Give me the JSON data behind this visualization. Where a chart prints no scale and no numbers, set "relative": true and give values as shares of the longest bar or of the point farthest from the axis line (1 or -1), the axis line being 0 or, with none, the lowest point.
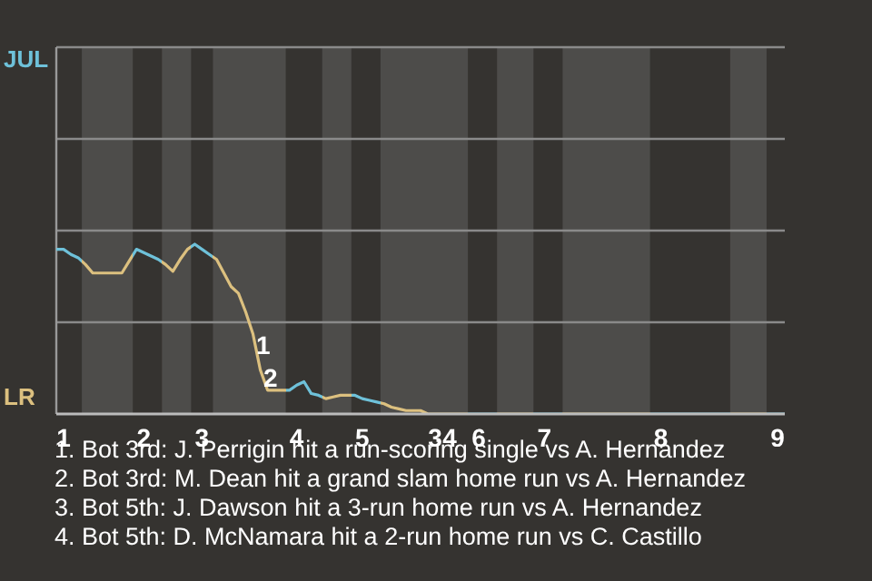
{
  "chart_data": {
    "type": "line",
    "relative": true,
    "categories": [
      null,
      "1",
      null,
      null,
      null,
      null,
      null,
      null,
      null,
      null,
      null,
      null,
      "2",
      null,
      null,
      null,
      null,
      null,
      null,
      null,
      "3",
      null,
      null,
      null,
      null,
      null,
      null,
      null,
      null,
      null,
      null,
      null,
      null,
      "4",
      null,
      null,
      null,
      null,
      null,
      null,
      null,
      null,
      "5",
      null,
      null,
      null,
      null,
      null,
      null,
      null,
      null,
      null,
      "3",
      null,
      "4",
      null,
      null,
      null,
      "6",
      null,
      null,
      null,
      null,
      null,
      null,
      null,
      null,
      "7",
      null,
      null,
      null,
      null,
      null,
      null,
      null,
      null,
      null,
      null,
      null,
      null,
      null,
      null,
      null,
      "8",
      null,
      null,
      null,
      null,
      null,
      null,
      null,
      null,
      null,
      null,
      null,
      null,
      null,
      null,
      null,
      "9",
      null
    ],
    "ref_lines": [
      {
        "axis": "y",
        "value": 0.54,
        "color": "#8a8a8a"
      },
      {
        "axis": "y",
        "value": 1.08,
        "color": "#8a8a8a"
      },
      {
        "axis": "y",
        "value": 1.62,
        "color": "#8a8a8a"
      },
      {
        "axis": "y",
        "value": 2.16,
        "color": "#8a8a8a"
      }
    ],
    "values": [
      0.97,
      0.97,
      0.94,
      0.92,
      0.88,
      0.83,
      0.83,
      0.83,
      0.83,
      0.83,
      0.9,
      0.97,
      0.95,
      0.93,
      0.91,
      0.88,
      0.84,
      0.91,
      0.97,
      1,
      0.97,
      0.94,
      0.91,
      0.83,
      0.75,
      0.71,
      0.6,
      0.47,
      0.26,
      0.14,
      0.14,
      0.14,
      0.14,
      0.17,
      0.19,
      0.12,
      0.11,
      0.09,
      0.1,
      0.11,
      0.11,
      0.11,
      0.09,
      0.08,
      0.07,
      0.06,
      0.04,
      0.03,
      0.02,
      0.02,
      0.02,
      0,
      0,
      0,
      0,
      0,
      0,
      0,
      0,
      0,
      0,
      0,
      0,
      0,
      0,
      0,
      0,
      0,
      0,
      0,
      0,
      0,
      0,
      0,
      0,
      0,
      0,
      0,
      0,
      0,
      0,
      0,
      0,
      0,
      0,
      0,
      0,
      0,
      0,
      0,
      0,
      0,
      0,
      0,
      0,
      0,
      0,
      0,
      0,
      0,
      0
    ],
    "colors": [
      "#6ec1d9",
      "#6ec1d9",
      "#6ec1d9",
      "#6ec1d9",
      "#dcc07f",
      "#dcc07f",
      "#dcc07f",
      "#dcc07f",
      "#dcc07f",
      "#dcc07f",
      "#dcc07f",
      "#6ec1d9",
      "#6ec1d9",
      "#6ec1d9",
      "#6ec1d9",
      "#dcc07f",
      "#dcc07f",
      "#dcc07f",
      "#dcc07f",
      "#6ec1d9",
      "#6ec1d9",
      "#6ec1d9",
      "#dcc07f",
      "#dcc07f",
      "#dcc07f",
      "#dcc07f",
      "#dcc07f",
      "#dcc07f",
      "#dcc07f",
      "#dcc07f",
      "#dcc07f",
      "#dcc07f",
      "#6ec1d9",
      "#6ec1d9",
      "#6ec1d9",
      "#6ec1d9",
      "#6ec1d9",
      "#dcc07f",
      "#dcc07f",
      "#dcc07f",
      "#dcc07f",
      "#6ec1d9",
      "#6ec1d9",
      "#6ec1d9",
      "#6ec1d9",
      "#dcc07f",
      "#dcc07f",
      "#dcc07f",
      "#dcc07f",
      "#dcc07f",
      "#dcc07f",
      "#dcc07f",
      "#dcc07f",
      "#dcc07f",
      "#dcc07f",
      "#dcc07f",
      "#dcc07f",
      "#6ec1d9",
      "#6ec1d9",
      "#6ec1d9",
      "#6ec1d9",
      "#dcc07f",
      "#dcc07f",
      "#dcc07f",
      "#dcc07f",
      "#dcc07f",
      "#6ec1d9",
      "#6ec1d9",
      "#6ec1d9",
      "#6ec1d9",
      "#dcc07f",
      "#dcc07f",
      "#dcc07f",
      "#dcc07f",
      "#dcc07f",
      "#dcc07f",
      "#dcc07f",
      "#dcc07f",
      "#dcc07f",
      "#dcc07f",
      "#dcc07f",
      "#dcc07f",
      "#6ec1d9",
      "#6ec1d9",
      "#6ec1d9",
      "#6ec1d9",
      "#6ec1d9",
      "#6ec1d9",
      "#6ec1d9",
      "#6ec1d9",
      "#6ec1d9",
      "#6ec1d9",
      "#6ec1d9",
      "#dcc07f",
      "#dcc07f",
      "#dcc07f",
      "#dcc07f",
      "#dcc07f",
      "#6ec1d9",
      "#6ec1d9",
      "#6ec1d9"
    ],
    "annotations": [
      "JUL",
      "LR",
      "1",
      "2",
      "1. Bot 3rd: J. Perrigin hit a run-scoring single vs A. Hernandez",
      "2. Bot 3rd: M. Dean hit a grand slam home run vs A. Hernandez",
      "3. Bot 5th: J. Dawson hit a 3-run home run vs A. Hernandez",
      "4. Bot 5th: D. McNamara hit a 2-run home run vs C. Castillo"
    ]
  }
}
